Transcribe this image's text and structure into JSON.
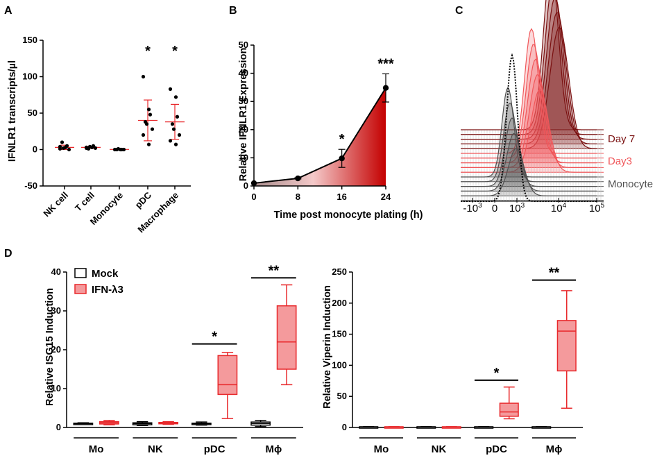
{
  "panels": {
    "A": "A",
    "B": "B",
    "C": "C",
    "D": "D"
  },
  "chart_data": [
    {
      "id": "A",
      "type": "scatter",
      "ylabel": "IFNLR1 transcripts/µl",
      "ylim": [
        -50,
        150
      ],
      "yticks": [
        -50,
        0,
        50,
        100,
        150
      ],
      "categories": [
        "NK cell",
        "T cell",
        "Monocyte",
        "pDC",
        "Macrophage"
      ],
      "points": [
        [
          1,
          3,
          5,
          10,
          2,
          0,
          4
        ],
        [
          2,
          3,
          5,
          1,
          4,
          2,
          3
        ],
        [
          0,
          0,
          0,
          0,
          1,
          0
        ],
        [
          100,
          55,
          48,
          38,
          35,
          28,
          20,
          7
        ],
        [
          83,
          72,
          45,
          35,
          28,
          20,
          12,
          7
        ]
      ],
      "mean": [
        3,
        3,
        0.2,
        40,
        38
      ],
      "sd": [
        3,
        1.5,
        0.5,
        28,
        24
      ],
      "significance": [
        "",
        "",
        "",
        "*",
        "*"
      ],
      "colors": {
        "points": "#000000",
        "errorbars": "#e8282b"
      }
    },
    {
      "id": "B",
      "type": "area",
      "title": "",
      "xlabel": "Time post monocyte plating (h)",
      "ylabel": "Relative IFNLR1 Expression",
      "x": [
        0,
        8,
        16,
        24
      ],
      "y": [
        1,
        2.7,
        9.8,
        34.8
      ],
      "err": [
        0,
        0.2,
        3.2,
        5
      ],
      "significance": [
        "",
        "",
        "*",
        "***"
      ],
      "xlim": [
        0,
        24
      ],
      "ylim": [
        0,
        50
      ],
      "xticks": [
        0,
        8,
        16,
        24
      ],
      "yticks": [
        0,
        10,
        20,
        30,
        40,
        50
      ],
      "colors": {
        "light": "#f6d7d7",
        "dark": "#c40000",
        "start": "#a98d8d"
      }
    },
    {
      "id": "C",
      "type": "histogram-overlay",
      "xticks": [
        {
          "base": "-10",
          "exp": "3",
          "value": -1000
        },
        {
          "base": "0",
          "exp": "",
          "value": 0
        },
        {
          "base": "10",
          "exp": "3",
          "value": 1000
        },
        {
          "base": "10",
          "exp": "4",
          "value": 10000
        },
        {
          "base": "10",
          "exp": "5",
          "value": 100000
        }
      ],
      "series_labels": [
        "Day 7",
        "Day3",
        "Monocyte"
      ],
      "colors": {
        "day7": "#7a1010",
        "day3": "#f0575a",
        "monocyte": "#505050"
      }
    },
    {
      "id": "D-left",
      "type": "box",
      "ylabel": "Relative ISG15 Induction",
      "ylim": [
        0,
        40
      ],
      "yticks": [
        0,
        10,
        20,
        30,
        40
      ],
      "groups": [
        "Mo",
        "NK",
        "pDC",
        "Mϕ"
      ],
      "legend": [
        "Mock",
        "IFN-λ3"
      ],
      "series": [
        {
          "name": "Mock",
          "boxes": [
            {
              "min": 0.8,
              "q1": 0.9,
              "median": 1.0,
              "q3": 1.1,
              "max": 1.2
            },
            {
              "min": 0.5,
              "q1": 0.7,
              "median": 1.0,
              "q3": 1.2,
              "max": 1.5
            },
            {
              "min": 0.6,
              "q1": 0.8,
              "median": 1.0,
              "q3": 1.1,
              "max": 1.4
            },
            {
              "min": 0.2,
              "q1": 0.6,
              "median": 1.0,
              "q3": 1.4,
              "max": 1.8
            }
          ]
        },
        {
          "name": "IFN-λ3",
          "boxes": [
            {
              "min": 0.7,
              "q1": 0.9,
              "median": 1.2,
              "q3": 1.5,
              "max": 1.8
            },
            {
              "min": 0.8,
              "q1": 1.0,
              "median": 1.2,
              "q3": 1.3,
              "max": 1.5
            },
            {
              "min": 2.3,
              "q1": 8.5,
              "median": 11,
              "q3": 18.5,
              "max": 19.3
            },
            {
              "min": 11,
              "q1": 15,
              "median": 22,
              "q3": 31.3,
              "max": 36.7
            }
          ]
        }
      ],
      "significance": [
        {
          "group": "pDC",
          "label": "*",
          "y": 21.5
        },
        {
          "group": "Mϕ",
          "label": "**",
          "y": 38.5
        }
      ],
      "colors": {
        "mock": "#000000",
        "ifn": "#e8282b",
        "ifn_fill": "#f49a9c"
      }
    },
    {
      "id": "D-right",
      "type": "box",
      "ylabel": "Relative Viperin Induction",
      "ylim": [
        0,
        250
      ],
      "yticks": [
        0,
        50,
        100,
        150,
        200,
        250
      ],
      "groups": [
        "Mo",
        "NK",
        "pDC",
        "Mϕ"
      ],
      "series": [
        {
          "name": "Mock",
          "boxes": [
            {
              "min": 0.8,
              "q1": 0.9,
              "median": 1.0,
              "q3": 1.1,
              "max": 1.2
            },
            {
              "min": 0.8,
              "q1": 0.9,
              "median": 1.0,
              "q3": 1.1,
              "max": 1.2
            },
            {
              "min": 0.8,
              "q1": 0.9,
              "median": 1.0,
              "q3": 1.1,
              "max": 1.2
            },
            {
              "min": 0.8,
              "q1": 0.9,
              "median": 1.0,
              "q3": 1.1,
              "max": 1.2
            }
          ]
        },
        {
          "name": "IFN-λ3",
          "boxes": [
            {
              "min": 0.8,
              "q1": 0.9,
              "median": 1.0,
              "q3": 1.1,
              "max": 1.3
            },
            {
              "min": 0.8,
              "q1": 0.9,
              "median": 1.0,
              "q3": 1.1,
              "max": 1.3
            },
            {
              "min": 14,
              "q1": 18,
              "median": 25,
              "q3": 39,
              "max": 65
            },
            {
              "min": 31,
              "q1": 91,
              "median": 155,
              "q3": 172,
              "max": 220
            }
          ]
        }
      ],
      "significance": [
        {
          "group": "pDC",
          "label": "*",
          "y": 76
        },
        {
          "group": "Mϕ",
          "label": "**",
          "y": 237
        }
      ]
    }
  ]
}
